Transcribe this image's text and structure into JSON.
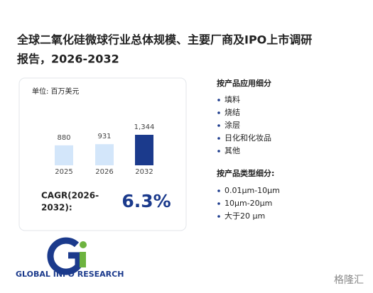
{
  "header": {
    "title_line1": "全球二氧化硅微球行业总体规模、主要厂商及IPO上市调研",
    "title_line2": "报告，2026-2032"
  },
  "chart_data": {
    "type": "bar",
    "unit_label": "单位: 百万美元",
    "categories": [
      "2025",
      "2026",
      "2032"
    ],
    "values": [
      880,
      931,
      1344
    ],
    "value_labels": [
      "880",
      "931",
      "1,344"
    ],
    "colors": [
      "#d3e6fa",
      "#d3e6fa",
      "#1b3a8c"
    ]
  },
  "cagr": {
    "label_line1": "CAGR(2026-",
    "label_line2": "2032):",
    "value": "6.3%"
  },
  "application": {
    "title": "按产品应用细分",
    "items": [
      "填料",
      "烧结",
      "涂层",
      "日化和化妆品",
      "其他"
    ]
  },
  "product_type": {
    "title": "按产品类型细分:",
    "items": [
      "0.01μm-10μm",
      "10μm-20μm",
      "大于20 μm"
    ]
  },
  "logo": {
    "text": "GLOBAL INFO RESEARCH"
  },
  "watermark": {
    "text": "格隆汇"
  }
}
